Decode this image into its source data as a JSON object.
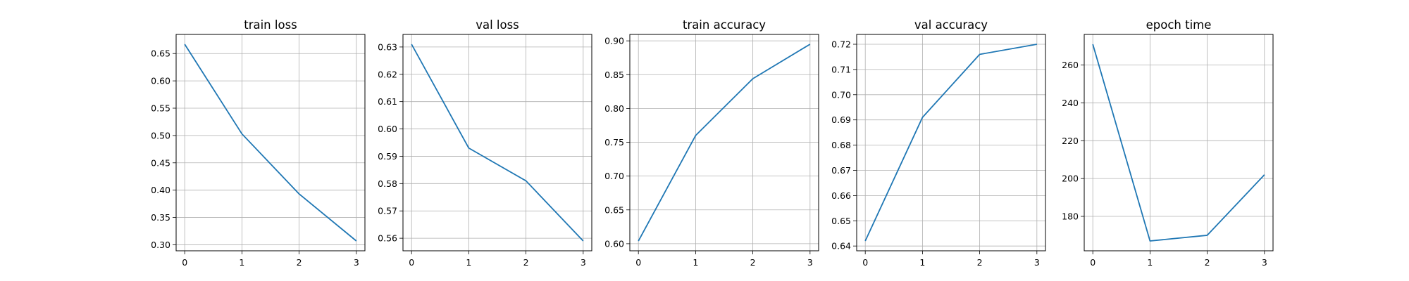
{
  "colors": {
    "series": "#1f77b4",
    "grid": "#b0b0b0",
    "frame": "#000000"
  },
  "chart_data": [
    {
      "type": "line",
      "title": "train loss",
      "xlabel": "",
      "ylabel": "",
      "x": [
        0,
        1,
        2,
        3
      ],
      "xticks": [
        0,
        1,
        2,
        3
      ],
      "series": [
        {
          "values": [
            0.667,
            0.503,
            0.393,
            0.307
          ]
        }
      ],
      "xlim": [
        -0.15,
        3.15
      ],
      "ylim": [
        0.289,
        0.685
      ],
      "yticks": [
        0.3,
        0.35,
        0.4,
        0.45,
        0.5,
        0.55,
        0.6,
        0.65
      ],
      "ytick_labels": [
        "0.30",
        "0.35",
        "0.40",
        "0.45",
        "0.50",
        "0.55",
        "0.60",
        "0.65"
      ],
      "grid": true
    },
    {
      "type": "line",
      "title": "val loss",
      "xlabel": "",
      "ylabel": "",
      "x": [
        0,
        1,
        2,
        3
      ],
      "xticks": [
        0,
        1,
        2,
        3
      ],
      "series": [
        {
          "values": [
            0.631,
            0.593,
            0.581,
            0.559
          ]
        }
      ],
      "xlim": [
        -0.15,
        3.15
      ],
      "ylim": [
        0.5554,
        0.6346
      ],
      "yticks": [
        0.56,
        0.57,
        0.58,
        0.59,
        0.6,
        0.61,
        0.62,
        0.63
      ],
      "ytick_labels": [
        "0.56",
        "0.57",
        "0.58",
        "0.59",
        "0.60",
        "0.61",
        "0.62",
        "0.63"
      ],
      "grid": true
    },
    {
      "type": "line",
      "title": "train accuracy",
      "xlabel": "",
      "ylabel": "",
      "x": [
        0,
        1,
        2,
        3
      ],
      "xticks": [
        0,
        1,
        2,
        3
      ],
      "series": [
        {
          "values": [
            0.604,
            0.76,
            0.844,
            0.895
          ]
        }
      ],
      "xlim": [
        -0.15,
        3.15
      ],
      "ylim": [
        0.5895,
        0.9095
      ],
      "yticks": [
        0.6,
        0.65,
        0.7,
        0.75,
        0.8,
        0.85,
        0.9
      ],
      "ytick_labels": [
        "0.60",
        "0.65",
        "0.70",
        "0.75",
        "0.80",
        "0.85",
        "0.90"
      ],
      "grid": true
    },
    {
      "type": "line",
      "title": "val accuracy",
      "xlabel": "",
      "ylabel": "",
      "x": [
        0,
        1,
        2,
        3
      ],
      "xticks": [
        0,
        1,
        2,
        3
      ],
      "series": [
        {
          "values": [
            0.642,
            0.691,
            0.716,
            0.72
          ]
        }
      ],
      "xlim": [
        -0.15,
        3.15
      ],
      "ylim": [
        0.6381,
        0.7239
      ],
      "yticks": [
        0.64,
        0.65,
        0.66,
        0.67,
        0.68,
        0.69,
        0.7,
        0.71,
        0.72
      ],
      "ytick_labels": [
        "0.64",
        "0.65",
        "0.66",
        "0.67",
        "0.68",
        "0.69",
        "0.70",
        "0.71",
        "0.72"
      ],
      "grid": true
    },
    {
      "type": "line",
      "title": "epoch time",
      "xlabel": "",
      "ylabel": "",
      "x": [
        0,
        1,
        2,
        3
      ],
      "xticks": [
        0,
        1,
        2,
        3
      ],
      "series": [
        {
          "values": [
            271,
            167,
            170,
            202
          ]
        }
      ],
      "xlim": [
        -0.15,
        3.15
      ],
      "ylim": [
        161.8,
        276.2
      ],
      "yticks": [
        180,
        200,
        220,
        240,
        260
      ],
      "ytick_labels": [
        "180",
        "200",
        "220",
        "240",
        "260"
      ],
      "grid": true
    }
  ]
}
